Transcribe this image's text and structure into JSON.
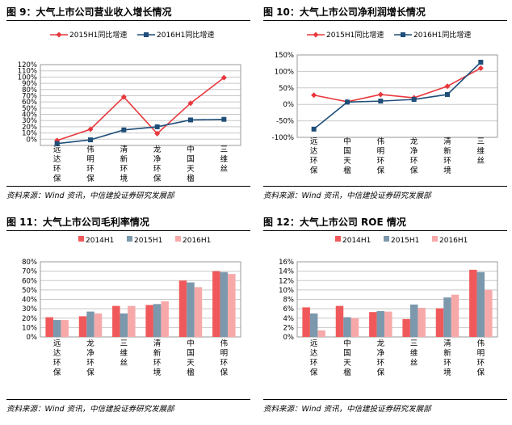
{
  "source_text": "资料来源：Wind 资讯，中信建投证券研究发展部",
  "colors": {
    "red": "#e8383d",
    "navy": "#1f4e79",
    "bar1": "#f0595b",
    "bar2": "#7b98ac",
    "bar3": "#f7a9a9"
  },
  "chart_data": [
    {
      "type": "line",
      "title": "图 9：大气上市公司营业收入增长情况",
      "categories": [
        "远达环保",
        "伟明环保",
        "清新环境",
        "龙净环保",
        "中国天楹",
        "三维丝"
      ],
      "tick_labels": [
        "0%",
        "10%",
        "20%",
        "30%",
        "40%",
        "50%",
        "60%",
        "70%",
        "80%",
        "90%",
        "100%",
        "110%",
        "120%"
      ],
      "ylim": [
        -10,
        120
      ],
      "ystep": 10,
      "grid": true,
      "legend": "top",
      "series": [
        {
          "name": "2015H1同比增速",
          "values": [
            -2,
            16,
            68,
            9,
            58,
            99
          ]
        },
        {
          "name": "2016H1同比增速",
          "values": [
            -7,
            -1,
            15,
            20,
            31,
            32
          ]
        }
      ]
    },
    {
      "type": "line",
      "title": "图 10：大气上市公司净利润增长情况",
      "categories": [
        "远达环保",
        "中国天楹",
        "伟明环保",
        "龙净环保",
        "清新环境",
        "三维丝"
      ],
      "tick_labels": [
        "-100%",
        "-50%",
        "0%",
        "50%",
        "100%",
        "150%"
      ],
      "ylim": [
        -100,
        150
      ],
      "ystep": 50,
      "grid": true,
      "legend": "top",
      "series": [
        {
          "name": "2015H1同比增速",
          "values": [
            28,
            8,
            30,
            20,
            55,
            110
          ]
        },
        {
          "name": "2016H1同比增速",
          "values": [
            -75,
            7,
            10,
            15,
            30,
            128
          ]
        }
      ]
    },
    {
      "type": "bar",
      "title": "图 11：大气上市公司毛利率情况",
      "categories": [
        "远达环保",
        "龙净环保",
        "三维丝",
        "清新环境",
        "中国天楹",
        "伟明环保"
      ],
      "tick_labels": [
        "0%",
        "10%",
        "20%",
        "30%",
        "40%",
        "50%",
        "60%",
        "70%",
        "80%"
      ],
      "ylim": [
        0,
        80
      ],
      "ystep": 10,
      "grid": true,
      "legend": "top",
      "series": [
        {
          "name": "2014H1",
          "values": [
            21,
            22,
            33,
            34,
            60,
            70
          ]
        },
        {
          "name": "2015H1",
          "values": [
            18,
            27,
            25,
            35,
            58,
            69
          ]
        },
        {
          "name": "2016H1",
          "values": [
            18,
            25,
            33,
            38,
            53,
            67
          ]
        }
      ]
    },
    {
      "type": "bar",
      "title": "图 12：大气上市公司 ROE 情况",
      "categories": [
        "远达环保",
        "中国天楹",
        "龙净环保",
        "三维丝",
        "清新环境",
        "伟明环保"
      ],
      "tick_labels": [
        "0%",
        "2%",
        "4%",
        "6%",
        "8%",
        "10%",
        "12%",
        "14%",
        "16%"
      ],
      "ylim": [
        0,
        16
      ],
      "ystep": 2,
      "grid": true,
      "legend": "top",
      "series": [
        {
          "name": "2014H1",
          "values": [
            6.3,
            6.6,
            5.3,
            3.8,
            6.1,
            14.3
          ]
        },
        {
          "name": "2015H1",
          "values": [
            5.0,
            4.2,
            5.5,
            6.9,
            8.4,
            13.8
          ]
        },
        {
          "name": "2016H1",
          "values": [
            1.4,
            4.0,
            5.4,
            6.2,
            9.0,
            10.0
          ]
        }
      ]
    }
  ]
}
